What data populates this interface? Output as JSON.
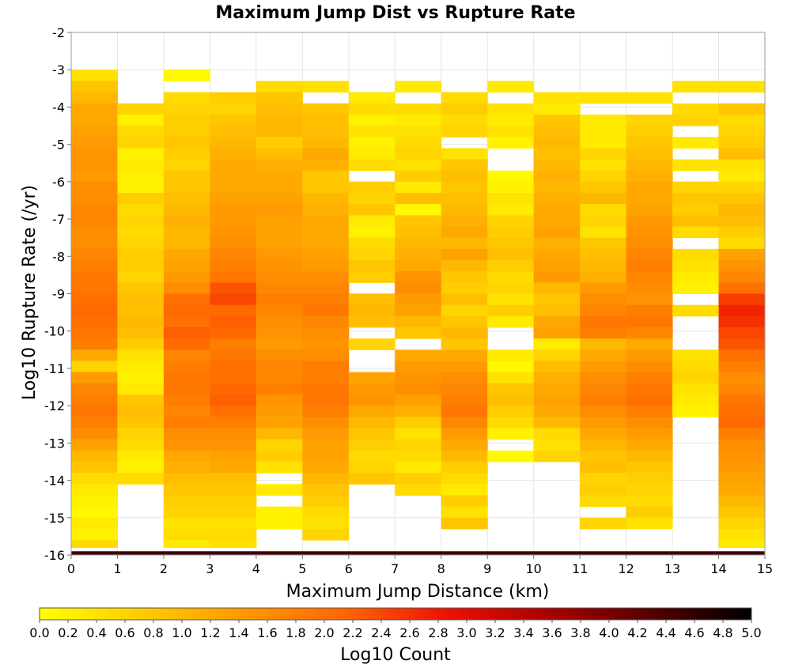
{
  "chart_data": {
    "type": "heatmap",
    "title": "Maximum Jump Dist vs Rupture Rate",
    "xlabel": "Maximum Jump Distance (km)",
    "ylabel": "Log10 Rupture Rate (/yr)",
    "xlim": [
      0,
      15
    ],
    "ylim": [
      -16,
      -2
    ],
    "x_ticks": [
      "0",
      "1",
      "2",
      "3",
      "4",
      "5",
      "6",
      "7",
      "8",
      "9",
      "10",
      "11",
      "12",
      "13",
      "14",
      "15"
    ],
    "y_ticks": [
      "-2",
      "-3",
      "-4",
      "-5",
      "-6",
      "-7",
      "-8",
      "-9",
      "-10",
      "-11",
      "-12",
      "-13",
      "-14",
      "-15",
      "-16"
    ],
    "grid": true,
    "colorbar": {
      "label": "Log10 Count",
      "range": [
        0,
        5
      ],
      "ticks": [
        "0.0",
        "0.2",
        "0.4",
        "0.6",
        "0.8",
        "1.0",
        "1.2",
        "1.4",
        "1.6",
        "1.8",
        "2.0",
        "2.2",
        "2.4",
        "2.6",
        "2.8",
        "3.0",
        "3.2",
        "3.4",
        "3.6",
        "3.8",
        "4.0",
        "4.2",
        "4.4",
        "4.6",
        "4.8",
        "5.0"
      ],
      "colors": [
        "#ffff00",
        "#ffcc00",
        "#ff9900",
        "#ff6600",
        "#ee1100",
        "#aa0000",
        "#550000",
        "#000000"
      ]
    },
    "x_bin_width": 1,
    "y_bin_width": 0.3,
    "bins": [
      {
        "x": 0.5,
        "y_top": -3.0,
        "values": [
          0.4,
          0.8,
          1.0,
          1.2,
          1.2,
          1.3,
          1.4,
          1.5,
          1.5,
          1.4,
          1.6,
          1.6,
          1.7,
          1.7,
          1.6,
          1.6,
          1.7,
          1.8,
          1.9,
          1.9,
          2.0,
          2.1,
          2.0,
          1.9,
          1.8,
          1.2,
          0.6,
          1.4,
          1.7,
          1.8,
          1.9,
          1.8,
          1.6,
          1.3,
          1.0,
          0.8,
          0.5,
          0.3,
          0.2,
          0.1,
          0.3,
          0.2,
          0.5,
          0.3,
          null,
          null,
          null,
          null,
          null,
          null,
          null,
          null,
          null,
          null,
          null,
          null,
          null,
          null,
          null,
          null,
          null,
          null,
          null,
          null
        ]
      },
      {
        "x": 1.5,
        "y_top": -3.9,
        "values": [
          0.6,
          0.2,
          0.5,
          0.6,
          0.2,
          0.3,
          0.2,
          0.2,
          0.7,
          0.5,
          0.6,
          0.5,
          0.6,
          0.7,
          0.7,
          0.6,
          0.8,
          0.9,
          0.9,
          1.0,
          0.9,
          0.7,
          0.4,
          0.3,
          0.2,
          0.3,
          0.8,
          0.9,
          0.8,
          0.6,
          0.5,
          0.3,
          0.2,
          0.5,
          null,
          null,
          null,
          null,
          null,
          null,
          null,
          null,
          null,
          null,
          null,
          null,
          null,
          null,
          null,
          null,
          null,
          null,
          null,
          null,
          null,
          null,
          null,
          null,
          null,
          null,
          null,
          null,
          null,
          null
        ]
      },
      {
        "x": 2.5,
        "y_top": -3.0,
        "values": [
          0.1,
          null,
          0.5,
          0.6,
          0.7,
          0.7,
          0.8,
          0.7,
          0.6,
          0.8,
          0.8,
          0.9,
          1.0,
          1.1,
          1.0,
          1.0,
          1.2,
          1.3,
          1.4,
          1.6,
          2.0,
          2.1,
          2.0,
          2.2,
          2.1,
          1.7,
          1.8,
          1.9,
          1.9,
          1.8,
          1.7,
          1.8,
          1.6,
          1.5,
          1.2,
          1.1,
          0.9,
          0.8,
          0.7,
          0.6,
          0.4,
          0.5,
          0.3,
          null,
          null,
          null,
          null,
          null,
          null,
          null,
          null,
          null,
          null,
          null,
          null,
          null,
          null,
          null,
          null,
          null,
          null,
          null,
          null
        ]
      },
      {
        "x": 3.5,
        "y_top": -3.6,
        "values": [
          0.7,
          0.6,
          0.8,
          0.9,
          1.0,
          1.1,
          1.2,
          1.2,
          1.2,
          1.3,
          1.4,
          1.4,
          1.5,
          1.6,
          1.7,
          1.8,
          1.9,
          2.3,
          2.4,
          2.1,
          2.2,
          2.1,
          1.8,
          1.9,
          2.0,
          2.0,
          2.1,
          2.2,
          2.0,
          1.8,
          1.6,
          1.5,
          1.3,
          1.2,
          0.9,
          0.8,
          0.7,
          0.6,
          0.4,
          0.5,
          0.4,
          null,
          null,
          null,
          null,
          null,
          null,
          null,
          null,
          null,
          null,
          null,
          null,
          null,
          null,
          null,
          null,
          null,
          null,
          null
        ]
      },
      {
        "x": 4.5,
        "y_top": -3.3,
        "values": [
          0.5,
          0.8,
          0.9,
          1.0,
          1.0,
          0.7,
          0.9,
          1.1,
          1.2,
          1.2,
          1.3,
          1.4,
          1.3,
          1.3,
          1.3,
          1.4,
          1.5,
          1.6,
          1.7,
          1.8,
          1.7,
          1.6,
          1.5,
          1.4,
          1.6,
          1.7,
          1.7,
          1.8,
          1.5,
          1.4,
          1.3,
          1.0,
          0.6,
          0.7,
          0.4,
          null,
          0.3,
          null,
          0.2,
          0.2,
          null,
          null,
          null,
          null,
          null,
          null,
          null,
          null,
          null,
          null,
          null,
          null,
          null,
          null,
          null,
          null,
          null,
          null,
          null,
          null,
          null
        ]
      },
      {
        "x": 5.5,
        "y_top": -3.3,
        "values": [
          0.4,
          null,
          0.8,
          0.9,
          0.9,
          1.0,
          1.2,
          1.1,
          0.8,
          0.8,
          1.0,
          1.1,
          1.2,
          1.2,
          1.2,
          1.3,
          1.4,
          1.6,
          1.7,
          1.8,
          1.9,
          1.7,
          1.6,
          1.5,
          1.6,
          1.8,
          1.8,
          1.9,
          1.9,
          1.8,
          1.6,
          1.4,
          1.3,
          1.3,
          1.2,
          1.0,
          0.8,
          0.7,
          0.5,
          0.4,
          0.6,
          null,
          null,
          null,
          null,
          null,
          null,
          null,
          null,
          null,
          null,
          null,
          null,
          null,
          null,
          null,
          null,
          null,
          null,
          null,
          null
        ]
      },
      {
        "x": 6.5,
        "y_top": -3.6,
        "values": [
          0.3,
          0.5,
          0.2,
          0.4,
          0.2,
          0.3,
          0.5,
          null,
          0.7,
          0.6,
          0.8,
          0.3,
          0.2,
          0.5,
          0.6,
          0.8,
          0.7,
          null,
          0.9,
          1.0,
          0.9,
          null,
          0.6,
          null,
          null,
          1.3,
          1.4,
          1.5,
          1.2,
          1.0,
          0.8,
          0.7,
          0.5,
          0.6,
          0.8,
          null,
          null,
          null,
          null,
          null,
          null,
          null,
          null,
          null,
          null,
          null,
          null,
          null,
          null,
          null,
          null,
          null,
          null,
          null,
          null,
          null,
          null,
          null,
          null,
          null,
          null
        ]
      },
      {
        "x": 7.5,
        "y_top": -3.3,
        "values": [
          0.3,
          null,
          0.5,
          0.3,
          0.4,
          0.5,
          0.6,
          0.4,
          0.7,
          0.3,
          0.9,
          0.1,
          0.8,
          0.9,
          1.0,
          1.1,
          1.2,
          1.5,
          1.6,
          1.4,
          1.3,
          1.0,
          0.8,
          null,
          1.2,
          1.4,
          1.5,
          1.6,
          1.3,
          1.1,
          0.7,
          0.4,
          0.6,
          0.5,
          0.3,
          0.7,
          0.5,
          null,
          null,
          null,
          null,
          null,
          null,
          null,
          null,
          null,
          null,
          null,
          null,
          null,
          null,
          null,
          null,
          null,
          null,
          null,
          null,
          null,
          null,
          null
        ]
      },
      {
        "x": 8.5,
        "y_top": -3.6,
        "values": [
          0.5,
          0.7,
          0.5,
          0.6,
          null,
          0.4,
          0.8,
          0.9,
          0.8,
          0.9,
          1.0,
          1.1,
          1.2,
          1.0,
          1.3,
          1.0,
          0.8,
          0.7,
          0.9,
          0.6,
          0.8,
          1.0,
          0.8,
          1.2,
          1.4,
          1.6,
          1.7,
          1.8,
          1.9,
          1.7,
          1.4,
          1.2,
          1.0,
          0.7,
          0.5,
          0.3,
          0.7,
          0.4,
          0.8,
          null,
          null,
          null,
          null,
          null,
          null,
          null,
          null,
          null,
          null,
          null,
          null,
          null,
          null,
          null,
          null,
          null,
          null,
          null,
          null,
          null
        ]
      },
      {
        "x": 9.5,
        "y_top": -3.3,
        "values": [
          0.3,
          null,
          0.4,
          0.3,
          0.4,
          0.2,
          null,
          null,
          0.1,
          0.2,
          0.4,
          0.3,
          0.6,
          0.7,
          0.8,
          0.9,
          0.7,
          0.5,
          0.6,
          0.4,
          0.7,
          0.3,
          null,
          null,
          0.3,
          0.1,
          0.4,
          0.8,
          0.9,
          0.7,
          0.5,
          0.2,
          null,
          0.1,
          null,
          null,
          null,
          null,
          null,
          null,
          null,
          null,
          null,
          null,
          null,
          null,
          null,
          null,
          null,
          null,
          null,
          null,
          null,
          null,
          null,
          null,
          null,
          null,
          null,
          null,
          null,
          null
        ]
      },
      {
        "x": 10.5,
        "y_top": -3.6,
        "values": [
          0.4,
          0.3,
          0.8,
          0.9,
          1.0,
          0.9,
          1.0,
          1.1,
          1.0,
          1.1,
          1.2,
          1.2,
          1.3,
          1.1,
          1.2,
          1.3,
          1.4,
          1.0,
          0.8,
          0.9,
          1.2,
          1.3,
          0.3,
          0.6,
          0.9,
          1.1,
          1.2,
          1.3,
          1.2,
          1.0,
          0.5,
          0.4,
          0.6,
          null,
          null,
          null,
          null,
          null,
          null,
          null,
          null,
          null,
          null,
          null,
          null,
          null,
          null,
          null,
          null,
          null,
          null,
          null,
          null,
          null,
          null,
          null,
          null,
          null,
          null,
          null,
          null
        ]
      },
      {
        "x": 11.5,
        "y_top": -3.6,
        "values": [
          0.4,
          null,
          0.3,
          0.3,
          0.3,
          0.6,
          0.4,
          0.6,
          0.8,
          1.0,
          0.5,
          0.6,
          0.4,
          0.8,
          0.9,
          1.0,
          1.1,
          1.4,
          1.6,
          1.7,
          1.9,
          1.8,
          1.0,
          1.2,
          1.4,
          1.6,
          1.7,
          1.8,
          1.6,
          1.4,
          1.2,
          1.0,
          0.8,
          0.9,
          0.6,
          0.7,
          0.5,
          null,
          0.6,
          null,
          null,
          null,
          null,
          null,
          null,
          null,
          null,
          null,
          null,
          null,
          null,
          null,
          null,
          null,
          null,
          null,
          null,
          null,
          null,
          null,
          null
        ]
      },
      {
        "x": 12.5,
        "y_top": -3.6,
        "values": [
          0.4,
          null,
          0.6,
          0.7,
          0.8,
          0.9,
          1.0,
          1.1,
          1.2,
          1.2,
          1.3,
          1.4,
          1.5,
          1.6,
          1.7,
          1.8,
          1.7,
          1.6,
          1.5,
          1.8,
          1.9,
          1.7,
          1.2,
          1.4,
          1.6,
          1.8,
          1.9,
          2.0,
          1.8,
          1.6,
          1.4,
          1.2,
          1.0,
          0.8,
          0.7,
          0.6,
          0.5,
          0.7,
          0.4,
          null,
          null,
          null,
          null,
          null,
          null,
          null,
          null,
          null,
          null,
          null,
          null,
          null,
          null,
          null,
          null,
          null,
          null,
          null,
          null,
          null,
          null
        ]
      },
      {
        "x": 13.5,
        "y_top": -3.3,
        "values": [
          0.4,
          null,
          0.5,
          0.6,
          null,
          0.3,
          null,
          0.4,
          null,
          0.6,
          0.8,
          0.7,
          0.9,
          0.5,
          null,
          0.5,
          0.4,
          0.3,
          0.2,
          null,
          0.5,
          null,
          null,
          null,
          0.4,
          0.5,
          0.6,
          0.4,
          0.3,
          0.2,
          null,
          null,
          null,
          null,
          null,
          null,
          null,
          null,
          null,
          null,
          null,
          null,
          null,
          null,
          null,
          null,
          null,
          null,
          null,
          null,
          null,
          null,
          null,
          null,
          null,
          null,
          null,
          null,
          null,
          null,
          null
        ]
      },
      {
        "x": 14.5,
        "y_top": -3.3,
        "values": [
          0.4,
          null,
          0.8,
          0.5,
          0.6,
          0.7,
          0.9,
          0.4,
          0.3,
          0.6,
          0.8,
          1.0,
          0.9,
          0.7,
          0.5,
          1.3,
          1.5,
          1.7,
          2.0,
          2.5,
          2.7,
          2.6,
          2.4,
          2.3,
          2.0,
          1.8,
          1.6,
          1.7,
          1.9,
          2.0,
          2.1,
          1.8,
          1.6,
          1.5,
          1.4,
          1.3,
          1.2,
          1.0,
          0.8,
          0.6,
          0.4,
          0.3,
          0.4,
          null,
          null,
          null,
          null,
          null,
          null,
          null,
          null,
          null,
          null,
          null,
          null,
          null,
          null,
          null,
          null,
          null,
          null
        ]
      }
    ],
    "bottom_row": {
      "y": -15.9,
      "value": 4.5
    }
  }
}
